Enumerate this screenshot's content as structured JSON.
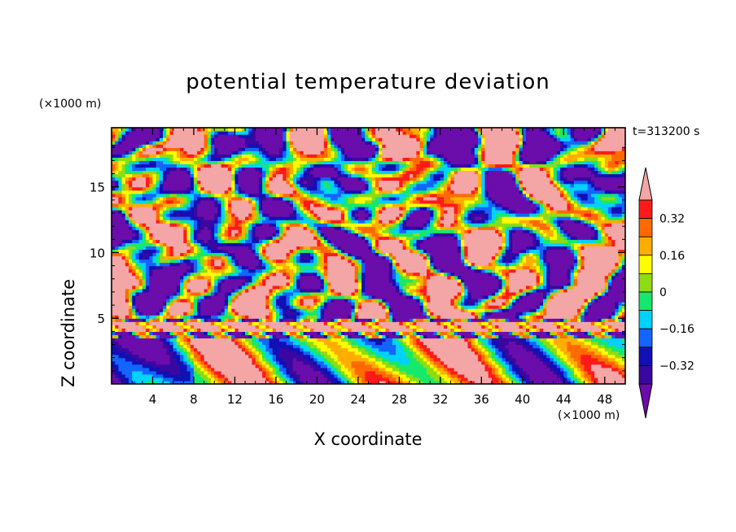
{
  "chart_data": {
    "type": "heatmap",
    "title": "potential temperature deviation",
    "xlabel": "X coordinate",
    "ylabel": "Z coordinate",
    "x_unit": "(×1000 m)",
    "y_unit": "(×1000 m)",
    "time_label": "t=313200 s",
    "xlim": [
      0,
      50
    ],
    "ylim": [
      0,
      19.5
    ],
    "x_ticks": [
      "4",
      "8",
      "12",
      "16",
      "20",
      "24",
      "28",
      "32",
      "36",
      "40",
      "44",
      "48"
    ],
    "y_ticks": [
      "5",
      "10",
      "15"
    ],
    "colorbar": {
      "levels": [
        -0.4,
        -0.32,
        -0.24,
        -0.16,
        -0.08,
        0,
        0.08,
        0.16,
        0.24,
        0.32,
        0.4
      ],
      "tick_labels": [
        "0.32",
        "0.16",
        "0",
        "−0.16",
        "−0.32"
      ],
      "colors": [
        "#6a0dab",
        "#3a08a0",
        "#1010b4",
        "#1464ff",
        "#00d2ff",
        "#17e86b",
        "#8edc14",
        "#fffb00",
        "#ffae00",
        "#ff6a00",
        "#ff1a1a",
        "#f4a6a6"
      ]
    }
  }
}
